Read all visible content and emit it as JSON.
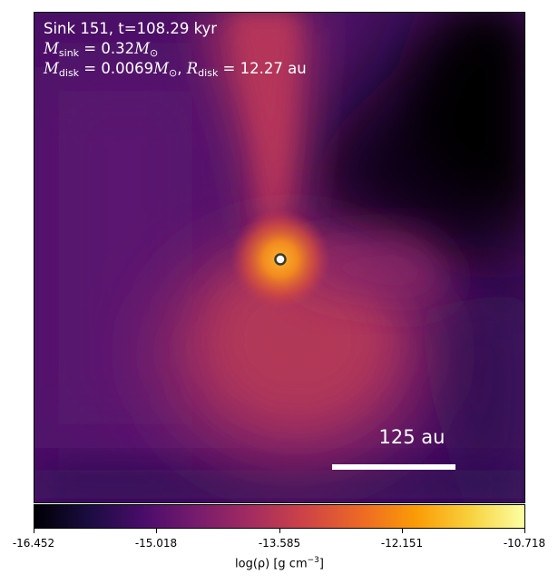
{
  "annotations": {
    "line1": "Sink 151, t=108.29 kyr",
    "m_sink_value": "0.32",
    "m_disk_value": "0.0069",
    "r_disk_value": "12.27",
    "r_disk_unit": "au"
  },
  "scale_bar": {
    "label": "125 au"
  },
  "colorbar": {
    "ticks": [
      "-16.452",
      "-15.018",
      "-13.585",
      "-12.151",
      "-10.718"
    ],
    "label_main": "log(ρ) [g cm",
    "label_exp": "−3",
    "label_end": "]"
  },
  "colors": {
    "cmap": [
      "#000004",
      "#1b0c41",
      "#4a0c6b",
      "#781c6d",
      "#a52c60",
      "#cf4446",
      "#ed6925",
      "#fb9b06",
      "#f7d13d",
      "#fcffa4"
    ],
    "sink_marker_fill": "#ffffff",
    "sink_marker_edge": "#3a3a2a"
  },
  "icons": {
    "sink": "sink-marker-circle"
  }
}
